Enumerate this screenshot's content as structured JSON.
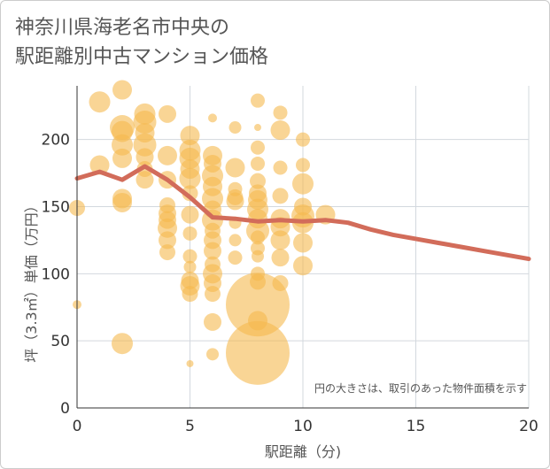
{
  "title_line1": "神奈川県海老名市中央の",
  "title_line2": "駅距離別中古マンション価格",
  "chart_data": {
    "type": "scatter",
    "xlabel": "駅距離（分)",
    "ylabel": "坪（3.3㎡）単価（万円）",
    "xlim": [
      0,
      20
    ],
    "ylim": [
      0,
      240
    ],
    "xticks": [
      0,
      5,
      10,
      15,
      20
    ],
    "yticks": [
      0,
      50,
      100,
      150,
      200
    ],
    "grid": true,
    "note": "円の大きさは、取引のあった物件面積を示す",
    "colors": {
      "bubble": "#f5b94f",
      "trend": "#d26c5a",
      "grid": "#d3d8de",
      "axis": "#333333"
    },
    "bubbles": [
      {
        "x": 0,
        "y": 149,
        "s": 9
      },
      {
        "x": 0,
        "y": 77,
        "s": 5
      },
      {
        "x": 1,
        "y": 228,
        "s": 12
      },
      {
        "x": 1,
        "y": 181,
        "s": 11
      },
      {
        "x": 2,
        "y": 237,
        "s": 11
      },
      {
        "x": 2,
        "y": 209,
        "s": 14
      },
      {
        "x": 2,
        "y": 206,
        "s": 12
      },
      {
        "x": 2,
        "y": 196,
        "s": 12
      },
      {
        "x": 2,
        "y": 186,
        "s": 11
      },
      {
        "x": 2,
        "y": 156,
        "s": 11
      },
      {
        "x": 2,
        "y": 153,
        "s": 11
      },
      {
        "x": 2,
        "y": 48,
        "s": 12
      },
      {
        "x": 3,
        "y": 219,
        "s": 12
      },
      {
        "x": 3,
        "y": 213,
        "s": 13
      },
      {
        "x": 3,
        "y": 205,
        "s": 11
      },
      {
        "x": 3,
        "y": 196,
        "s": 13
      },
      {
        "x": 3,
        "y": 187,
        "s": 10
      },
      {
        "x": 3,
        "y": 178,
        "s": 9
      },
      {
        "x": 3,
        "y": 170,
        "s": 10
      },
      {
        "x": 4,
        "y": 219,
        "s": 10
      },
      {
        "x": 4,
        "y": 188,
        "s": 11
      },
      {
        "x": 4,
        "y": 170,
        "s": 10
      },
      {
        "x": 4,
        "y": 151,
        "s": 9
      },
      {
        "x": 4,
        "y": 145,
        "s": 10
      },
      {
        "x": 4,
        "y": 140,
        "s": 10
      },
      {
        "x": 4,
        "y": 134,
        "s": 11
      },
      {
        "x": 4,
        "y": 125,
        "s": 10
      },
      {
        "x": 4,
        "y": 116,
        "s": 9
      },
      {
        "x": 5,
        "y": 203,
        "s": 11
      },
      {
        "x": 5,
        "y": 192,
        "s": 12
      },
      {
        "x": 5,
        "y": 186,
        "s": 12
      },
      {
        "x": 5,
        "y": 178,
        "s": 11
      },
      {
        "x": 5,
        "y": 171,
        "s": 12
      },
      {
        "x": 5,
        "y": 160,
        "s": 9
      },
      {
        "x": 5,
        "y": 144,
        "s": 10
      },
      {
        "x": 5,
        "y": 130,
        "s": 8
      },
      {
        "x": 5,
        "y": 113,
        "s": 8
      },
      {
        "x": 5,
        "y": 105,
        "s": 7
      },
      {
        "x": 5,
        "y": 95,
        "s": 10
      },
      {
        "x": 5,
        "y": 91,
        "s": 11
      },
      {
        "x": 5,
        "y": 85,
        "s": 9
      },
      {
        "x": 5,
        "y": 33,
        "s": 4
      },
      {
        "x": 6,
        "y": 216,
        "s": 5
      },
      {
        "x": 6,
        "y": 188,
        "s": 11
      },
      {
        "x": 6,
        "y": 182,
        "s": 10
      },
      {
        "x": 6,
        "y": 173,
        "s": 12
      },
      {
        "x": 6,
        "y": 165,
        "s": 11
      },
      {
        "x": 6,
        "y": 156,
        "s": 12
      },
      {
        "x": 6,
        "y": 148,
        "s": 10
      },
      {
        "x": 6,
        "y": 140,
        "s": 12
      },
      {
        "x": 6,
        "y": 132,
        "s": 9
      },
      {
        "x": 6,
        "y": 125,
        "s": 10
      },
      {
        "x": 6,
        "y": 117,
        "s": 10
      },
      {
        "x": 6,
        "y": 107,
        "s": 9
      },
      {
        "x": 6,
        "y": 100,
        "s": 11
      },
      {
        "x": 6,
        "y": 93,
        "s": 10
      },
      {
        "x": 6,
        "y": 85,
        "s": 9
      },
      {
        "x": 6,
        "y": 64,
        "s": 10
      },
      {
        "x": 6,
        "y": 40,
        "s": 7
      },
      {
        "x": 7,
        "y": 209,
        "s": 7
      },
      {
        "x": 7,
        "y": 179,
        "s": 11
      },
      {
        "x": 7,
        "y": 163,
        "s": 8
      },
      {
        "x": 7,
        "y": 157,
        "s": 9
      },
      {
        "x": 7,
        "y": 154,
        "s": 10
      },
      {
        "x": 7,
        "y": 138,
        "s": 7
      },
      {
        "x": 7,
        "y": 125,
        "s": 7
      },
      {
        "x": 7,
        "y": 112,
        "s": 8
      },
      {
        "x": 8,
        "y": 229,
        "s": 8
      },
      {
        "x": 8,
        "y": 209,
        "s": 4
      },
      {
        "x": 8,
        "y": 194,
        "s": 8
      },
      {
        "x": 8,
        "y": 182,
        "s": 8
      },
      {
        "x": 8,
        "y": 169,
        "s": 9
      },
      {
        "x": 8,
        "y": 160,
        "s": 10
      },
      {
        "x": 8,
        "y": 155,
        "s": 11
      },
      {
        "x": 8,
        "y": 148,
        "s": 12
      },
      {
        "x": 8,
        "y": 141,
        "s": 11
      },
      {
        "x": 8,
        "y": 132,
        "s": 13
      },
      {
        "x": 8,
        "y": 127,
        "s": 8
      },
      {
        "x": 8,
        "y": 119,
        "s": 8
      },
      {
        "x": 8,
        "y": 113,
        "s": 7
      },
      {
        "x": 8,
        "y": 100,
        "s": 8
      },
      {
        "x": 8,
        "y": 94,
        "s": 9
      },
      {
        "x": 8,
        "y": 77,
        "s": 36
      },
      {
        "x": 8,
        "y": 65,
        "s": 11
      },
      {
        "x": 8,
        "y": 41,
        "s": 36
      },
      {
        "x": 9,
        "y": 220,
        "s": 8
      },
      {
        "x": 9,
        "y": 207,
        "s": 11
      },
      {
        "x": 9,
        "y": 179,
        "s": 8
      },
      {
        "x": 9,
        "y": 158,
        "s": 9
      },
      {
        "x": 9,
        "y": 141,
        "s": 11
      },
      {
        "x": 9,
        "y": 135,
        "s": 11
      },
      {
        "x": 9,
        "y": 125,
        "s": 11
      },
      {
        "x": 9,
        "y": 112,
        "s": 10
      },
      {
        "x": 9,
        "y": 93,
        "s": 9
      },
      {
        "x": 10,
        "y": 200,
        "s": 8
      },
      {
        "x": 10,
        "y": 181,
        "s": 8
      },
      {
        "x": 10,
        "y": 167,
        "s": 12
      },
      {
        "x": 10,
        "y": 150,
        "s": 10
      },
      {
        "x": 10,
        "y": 143,
        "s": 13
      },
      {
        "x": 10,
        "y": 138,
        "s": 12
      },
      {
        "x": 10,
        "y": 123,
        "s": 11
      },
      {
        "x": 10,
        "y": 106,
        "s": 11
      },
      {
        "x": 11,
        "y": 144,
        "s": 11
      }
    ],
    "trend": {
      "x": [
        0,
        1,
        2,
        3,
        4,
        5,
        6,
        7,
        8,
        9,
        10,
        11,
        12,
        13,
        14,
        15,
        16,
        17,
        18,
        19,
        20
      ],
      "y": [
        171,
        176,
        170,
        180,
        170,
        157,
        142,
        141,
        139,
        140,
        139,
        140,
        138,
        133,
        129,
        126,
        123,
        120,
        117,
        114,
        111
      ]
    }
  }
}
